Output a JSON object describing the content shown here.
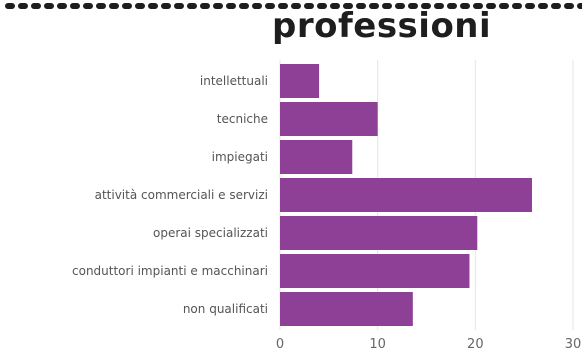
{
  "chart_data": {
    "type": "bar",
    "orientation": "horizontal",
    "title": "professioni",
    "categories": [
      "intellettuali",
      "tecniche",
      "impiegati",
      "attività commerciali e servizi",
      "operai specializzati",
      "conduttori impianti e macchinari",
      "non qualificati"
    ],
    "values": [
      4,
      10,
      7.4,
      25.8,
      20.2,
      19.4,
      13.6
    ],
    "xlim": [
      0,
      30
    ],
    "xticks": [
      "0",
      "10",
      "20",
      "30"
    ],
    "grid": true,
    "bar_color": "#8e3f96"
  }
}
